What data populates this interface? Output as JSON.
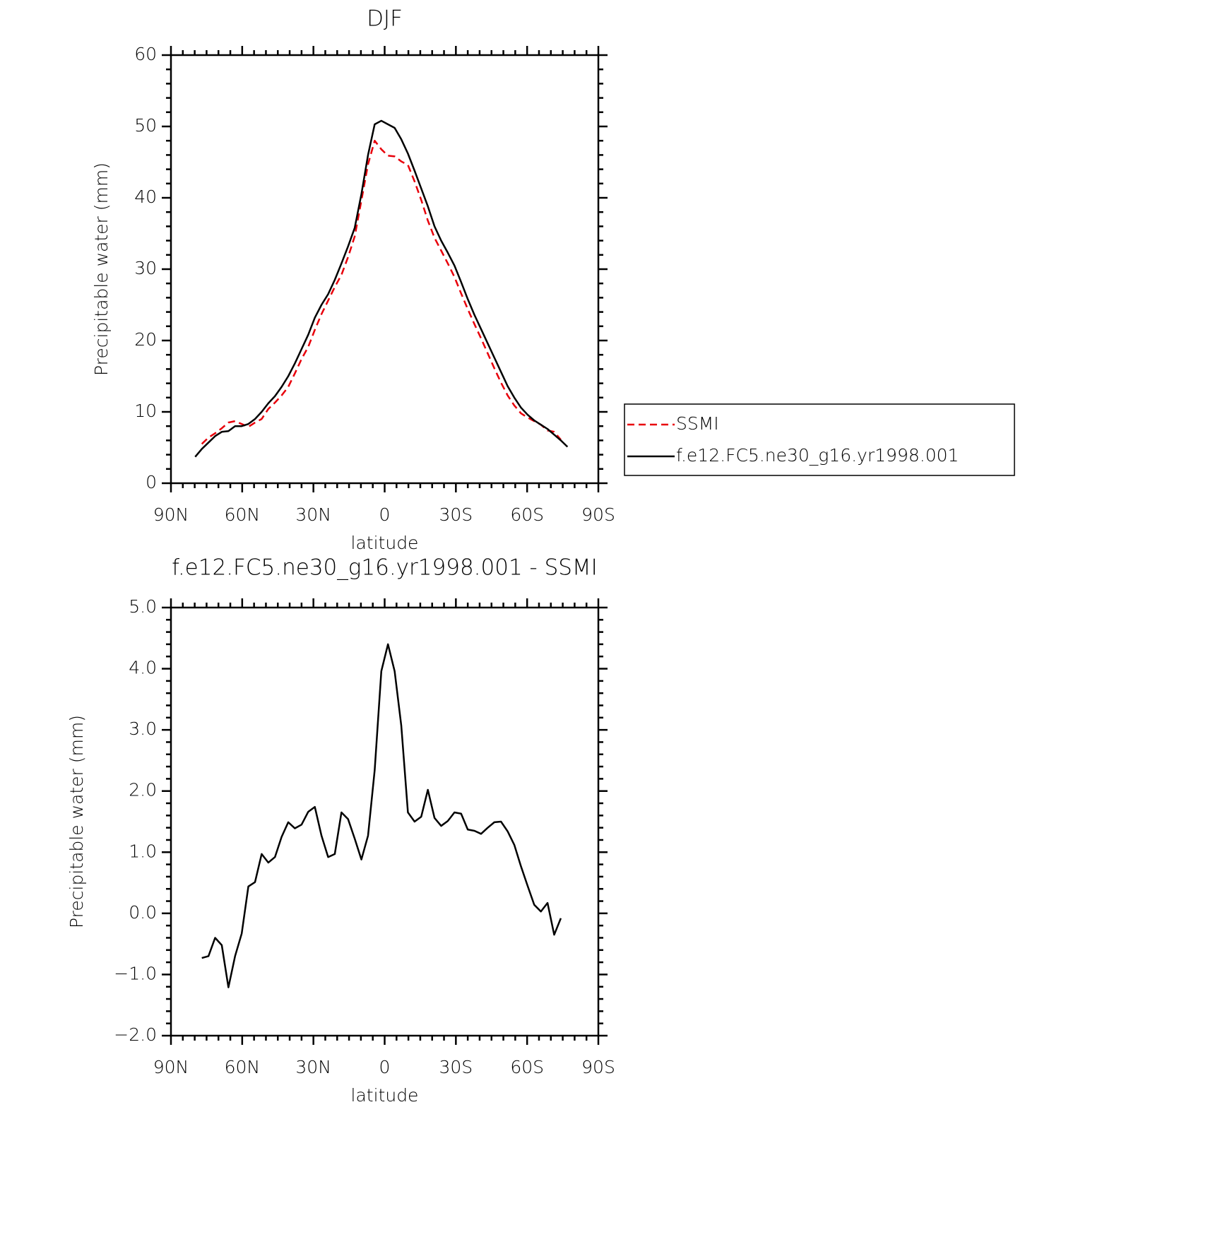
{
  "chart_data": [
    {
      "type": "line",
      "title": "DJF",
      "xlabel": "latitude",
      "ylabel": "Precipitable water (mm)",
      "x": [
        79.8,
        77,
        74.2,
        71.4,
        68.6,
        65.8,
        63,
        60.2,
        57.4,
        54.6,
        51.8,
        49,
        46.2,
        43.4,
        40.6,
        37.8,
        35,
        32.2,
        29.4,
        26.6,
        23.8,
        21,
        18.2,
        15.4,
        12.6,
        9.8,
        7,
        4.2,
        1.4,
        -1.4,
        -4.2,
        -7,
        -9.8,
        -12.6,
        -15.4,
        -18.2,
        -21,
        -23.8,
        -26.6,
        -29.4,
        -32.2,
        -35,
        -37.8,
        -40.6,
        -43.4,
        -46.2,
        -49,
        -51.8,
        -54.6,
        -57.4,
        -60.2,
        -63,
        -65.8,
        -68.6,
        -71.4,
        -74.2,
        -77
      ],
      "series": [
        {
          "name": "SSMI",
          "color": "#e8000b",
          "dashed": true,
          "values": [
            null,
            5.5,
            6.4,
            7.0,
            7.7,
            8.5,
            8.7,
            8.3,
            7.9,
            8.5,
            9.0,
            10.4,
            11.3,
            12.3,
            13.5,
            15.4,
            17.4,
            19.1,
            21.5,
            23.7,
            25.6,
            27.5,
            29.2,
            31.7,
            34.6,
            39.6,
            44.7,
            48.0,
            46.8,
            45.9,
            45.8,
            45.1,
            44.6,
            42.3,
            39.7,
            36.8,
            34.4,
            32.6,
            30.8,
            28.9,
            26.6,
            24.4,
            22.3,
            20.3,
            18.2,
            16.1,
            14.1,
            12.3,
            10.9,
            9.8,
            9.2,
            8.7,
            8.2,
            7.4,
            7.2,
            6.1,
            null
          ]
        },
        {
          "name": "f.e12.FC5.ne30_g16.yr1998.001",
          "color": "#000000",
          "dashed": false,
          "values": [
            3.7,
            4.8,
            5.7,
            6.6,
            7.2,
            7.3,
            8.0,
            8.0,
            8.3,
            9.0,
            10.0,
            11.2,
            12.2,
            13.5,
            15.0,
            16.8,
            18.8,
            20.8,
            23.2,
            25.0,
            26.5,
            28.5,
            30.8,
            33.2,
            35.8,
            40.5,
            46.0,
            50.3,
            50.8,
            50.3,
            49.8,
            48.2,
            46.2,
            43.8,
            41.3,
            38.8,
            36.0,
            34.0,
            32.3,
            30.5,
            28.2,
            25.8,
            23.6,
            21.6,
            19.6,
            17.6,
            15.6,
            13.6,
            12.0,
            10.6,
            9.6,
            8.8,
            8.2,
            7.6,
            6.8,
            6.0,
            5.1
          ]
        }
      ],
      "xlim": [
        90,
        -90
      ],
      "xticks": [
        {
          "value": 90,
          "label": "90N"
        },
        {
          "value": 60,
          "label": "60N"
        },
        {
          "value": 30,
          "label": "30N"
        },
        0,
        {
          "value": -30,
          "label": "30S"
        },
        {
          "value": -60,
          "label": "60S"
        },
        {
          "value": -90,
          "label": "90S"
        }
      ],
      "ylim": [
        0,
        60
      ],
      "yticks": [
        0,
        10,
        20,
        30,
        40,
        50,
        60
      ],
      "legend": "right"
    },
    {
      "type": "line",
      "title": "f.e12.FC5.ne30_g16.yr1998.001 - SSMI",
      "xlabel": "latitude",
      "ylabel": "Precipitable water (mm)",
      "x": [
        77,
        74.2,
        71.4,
        68.6,
        65.8,
        63,
        60.2,
        57.4,
        54.6,
        51.8,
        49,
        46.2,
        43.4,
        40.6,
        37.8,
        35,
        32.2,
        29.4,
        26.6,
        23.8,
        21,
        18.2,
        15.4,
        12.6,
        9.8,
        7,
        4.2,
        1.4,
        -1.4,
        -4.2,
        -7,
        -9.8,
        -12.6,
        -15.4,
        -18.2,
        -21,
        -23.8,
        -26.6,
        -29.4,
        -32.2,
        -35,
        -37.8,
        -40.6,
        -43.4,
        -46.2,
        -49,
        -51.8,
        -54.6,
        -57.4,
        -60.2,
        -63,
        -65.8,
        -68.6,
        -71.4,
        -74.2
      ],
      "values": [
        -0.73,
        -0.7,
        -0.4,
        -0.52,
        -1.21,
        -0.7,
        -0.33,
        0.44,
        0.51,
        0.97,
        0.83,
        0.92,
        1.25,
        1.49,
        1.39,
        1.45,
        1.66,
        1.74,
        1.27,
        0.92,
        0.97,
        1.65,
        1.54,
        1.22,
        0.88,
        1.27,
        2.34,
        3.96,
        4.4,
        3.96,
        3.07,
        1.65,
        1.5,
        1.58,
        2.02,
        1.56,
        1.43,
        1.51,
        1.65,
        1.63,
        1.37,
        1.35,
        1.3,
        1.4,
        1.49,
        1.5,
        1.34,
        1.12,
        0.77,
        0.45,
        0.14,
        0.03,
        0.17,
        -0.35,
        -0.08
      ],
      "color": "#000000",
      "xlim": [
        90,
        -90
      ],
      "xticks": [
        {
          "value": 90,
          "label": "90N"
        },
        {
          "value": 60,
          "label": "60N"
        },
        {
          "value": 30,
          "label": "30N"
        },
        0,
        {
          "value": -30,
          "label": "30S"
        },
        {
          "value": -60,
          "label": "60S"
        },
        {
          "value": -90,
          "label": "90S"
        }
      ],
      "ylim": [
        -2,
        5
      ],
      "yticks": [
        {
          "value": -2,
          "label": "−2.0"
        },
        {
          "value": -1,
          "label": "−1.0"
        },
        {
          "value": 0,
          "label": "0.0"
        },
        {
          "value": 1,
          "label": "1.0"
        },
        {
          "value": 2,
          "label": "2.0"
        },
        {
          "value": 3,
          "label": "3.0"
        },
        {
          "value": 4,
          "label": "4.0"
        },
        {
          "value": 5,
          "label": "5.0"
        }
      ]
    }
  ]
}
